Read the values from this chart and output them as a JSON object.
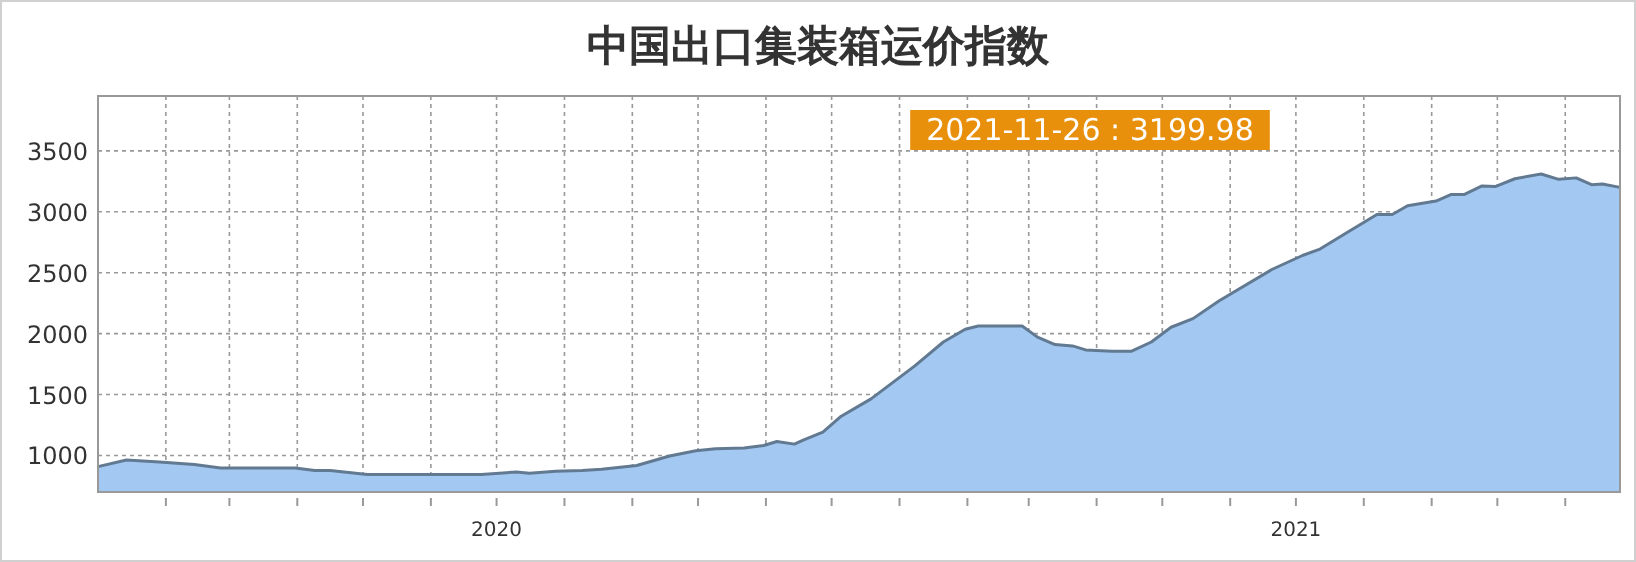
{
  "chart_data": {
    "type": "area",
    "title": "中国出口集装箱运价指数",
    "annotations": [
      "2021-11-26 : 3199.98"
    ],
    "x": [
      "2020-01-01",
      "2020-01-14",
      "2020-01-29",
      "2020-02-14",
      "2020-02-26",
      "2020-03-31",
      "2020-04-09",
      "2020-04-16",
      "2020-05-03",
      "2020-06-24",
      "2020-07-10",
      "2020-07-16",
      "2020-07-28",
      "2020-08-09",
      "2020-08-18",
      "2020-09-03",
      "2020-09-18",
      "2020-09-30",
      "2020-10-09",
      "2020-10-22",
      "2020-10-31",
      "2020-11-06",
      "2020-11-14",
      "2020-11-18",
      "2020-11-27",
      "2020-12-05",
      "2020-12-19",
      "2021-01-08",
      "2021-01-21",
      "2021-01-31",
      "2021-02-06",
      "2021-02-26",
      "2021-03-05",
      "2021-03-13",
      "2021-03-21",
      "2021-03-27",
      "2021-04-08",
      "2021-04-17",
      "2021-04-26",
      "2021-05-05",
      "2021-05-15",
      "2021-05-27",
      "2021-06-20",
      "2021-07-04",
      "2021-07-12",
      "2021-07-24",
      "2021-08-07",
      "2021-08-14",
      "2021-08-21",
      "2021-09-03",
      "2021-09-10",
      "2021-09-16",
      "2021-09-24",
      "2021-09-30",
      "2021-10-09",
      "2021-10-21",
      "2021-10-29",
      "2021-11-06",
      "2021-11-13",
      "2021-11-18",
      "2021-11-26"
    ],
    "values": [
      908,
      962,
      946,
      925,
      897,
      897,
      876,
      876,
      843,
      843,
      865,
      854,
      870,
      876,
      886,
      918,
      995,
      1039,
      1055,
      1061,
      1082,
      1114,
      1093,
      1126,
      1191,
      1317,
      1464,
      1735,
      1931,
      2036,
      2062,
      2062,
      1971,
      1910,
      1899,
      1866,
      1856,
      1856,
      1931,
      2052,
      2123,
      2270,
      2526,
      2641,
      2694,
      2825,
      2977,
      2977,
      3049,
      3088,
      3142,
      3142,
      3212,
      3207,
      3271,
      3310,
      3266,
      3278,
      3222,
      3228,
      3199.98
    ],
    "color": "#a3c9f3",
    "xlim": [
      "2020-01-01",
      "2021-11-26"
    ],
    "xticks": [
      {
        "value": "2020-02-01",
        "label": null
      },
      {
        "value": "2020-03-01",
        "label": null
      },
      {
        "value": "2020-04-01",
        "label": null
      },
      {
        "value": "2020-05-01",
        "label": null
      },
      {
        "value": "2020-06-01",
        "label": null
      },
      {
        "value": "2020-07-01",
        "label": "2020"
      },
      {
        "value": "2020-08-01",
        "label": null
      },
      {
        "value": "2020-09-01",
        "label": null
      },
      {
        "value": "2020-10-01",
        "label": null
      },
      {
        "value": "2020-11-01",
        "label": null
      },
      {
        "value": "2020-12-01",
        "label": null
      },
      {
        "value": "2021-01-01",
        "label": null
      },
      {
        "value": "2021-02-01",
        "label": null
      },
      {
        "value": "2021-03-01",
        "label": null
      },
      {
        "value": "2021-04-01",
        "label": null
      },
      {
        "value": "2021-05-01",
        "label": null
      },
      {
        "value": "2021-06-01",
        "label": null
      },
      {
        "value": "2021-07-01",
        "label": "2021"
      },
      {
        "value": "2021-08-01",
        "label": null
      },
      {
        "value": "2021-09-01",
        "label": null
      },
      {
        "value": "2021-10-01",
        "label": null
      },
      {
        "value": "2021-11-01",
        "label": null
      }
    ],
    "ylim": [
      700,
      3950
    ],
    "yticks": [
      1000,
      1500,
      2000,
      2500,
      3000,
      3500
    ],
    "grid": true
  }
}
